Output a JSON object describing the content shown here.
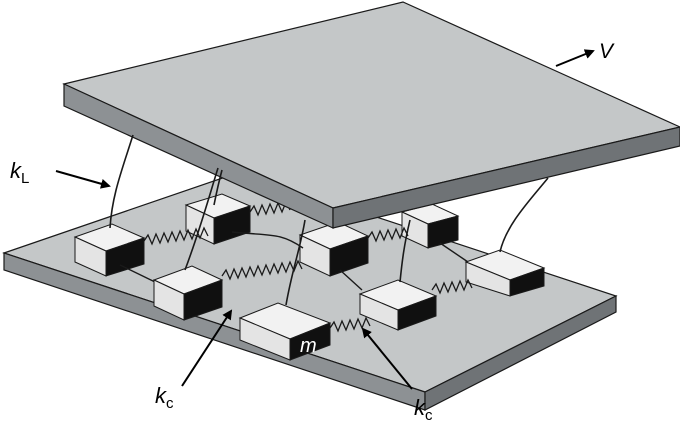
{
  "labels": {
    "velocity": "V",
    "k_leaf_main": "k",
    "k_leaf_sub": "L",
    "k_coupling_1_main": "k",
    "k_coupling_1_sub": "c",
    "k_coupling_2_main": "k",
    "k_coupling_2_sub": "c",
    "mass": "m"
  },
  "colors": {
    "plate_top": "#c4c7c8",
    "plate_front": "#8d9194",
    "plate_side": "#6f7376",
    "block_top": "#f2f2f2",
    "block_front": "#e4e4e4",
    "block_side": "#101010",
    "stroke": "#1a1a1a"
  }
}
